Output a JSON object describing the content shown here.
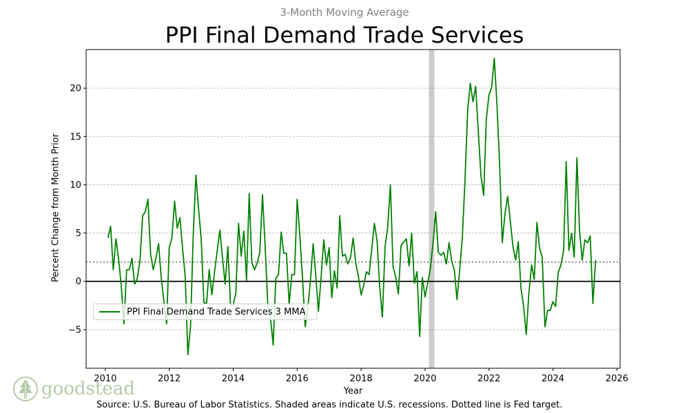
{
  "colors": {
    "series": "#008000",
    "recession": "#cccccc",
    "fed_target": "#808080",
    "zero_line": "#000000",
    "grid": "#b0b0b0"
  },
  "logo": {
    "text": "goodstead",
    "icon": "tree-icon"
  },
  "chart_data": {
    "type": "line",
    "subtitle": "3-Month Moving Average",
    "title": "PPI Final Demand Trade Services",
    "xlabel": "Year",
    "ylabel": "Percent Change from Month Prior",
    "source": "Source: U.S. Bureau of Labor Statistics. Shaded areas indicate U.S. recessions. Dotted line is Fed target.",
    "xlim": [
      2009.4,
      2026.1
    ],
    "ylim": [
      -9,
      24
    ],
    "xticks": [
      2010,
      2012,
      2014,
      2016,
      2018,
      2020,
      2022,
      2024,
      2026
    ],
    "yticks": [
      -5,
      0,
      5,
      10,
      15,
      20
    ],
    "grid": "horizontal dashed",
    "legend": {
      "position": "lower-left",
      "entries": [
        "PPI Final Demand Trade Services 3 MMA"
      ]
    },
    "reference_lines": [
      {
        "name": "fed-target",
        "y": 2,
        "style": "dotted"
      },
      {
        "name": "zero",
        "y": 0,
        "style": "solid"
      }
    ],
    "recessions": [
      [
        2020.12,
        2020.29
      ]
    ],
    "series": [
      {
        "name": "PPI Final Demand Trade Services 3 MMA",
        "start": 2010.083,
        "step": 0.08333,
        "values": [
          4.5,
          5.7,
          1.2,
          4.4,
          2.3,
          -0.5,
          -4.4,
          1.2,
          1.2,
          2.4,
          -0.3,
          0.3,
          2.1,
          6.8,
          7.2,
          8.5,
          2.8,
          1.2,
          2.4,
          3.9,
          0.4,
          -2.1,
          -4.4,
          3.5,
          4.5,
          8.3,
          5.5,
          6.6,
          3.4,
          0.5,
          -7.6,
          -4.6,
          4.7,
          11.0,
          7.5,
          4.4,
          -2.2,
          -2.3,
          1.2,
          -1.4,
          1.0,
          3.1,
          5.3,
          2.4,
          -0.3,
          3.6,
          -2.5,
          -2.4,
          -1.2,
          6.0,
          2.6,
          5.2,
          0.1,
          9.1,
          1.9,
          1.2,
          1.9,
          3.0,
          9.0,
          3.5,
          -2.5,
          -3.8,
          -6.6,
          0.3,
          0.7,
          5.1,
          2.9,
          2.9,
          -2.4,
          0.7,
          0.7,
          8.5,
          4.8,
          0.4,
          -4.7,
          -2.8,
          0.1,
          3.9,
          0.6,
          -3.1,
          0.5,
          4.3,
          1.7,
          3.5,
          -1.7,
          1.1,
          -0.7,
          6.8,
          2.6,
          2.8,
          1.8,
          2.4,
          4.5,
          1.9,
          0.5,
          -1.4,
          -0.4,
          1.0,
          0.7,
          3.3,
          6.0,
          4.2,
          -0.6,
          -3.7,
          3.6,
          5.6,
          10.0,
          1.5,
          0.5,
          -1.3,
          3.7,
          4.1,
          4.4,
          1.6,
          5.0,
          -0.2,
          1.0,
          -5.7,
          0.4,
          -1.6,
          -0.2,
          1.3,
          4.0,
          7.2,
          3.0,
          2.7,
          3.0,
          1.8,
          4.0,
          2.1,
          1.2,
          -1.9,
          1.2,
          4.5,
          10.5,
          17.8,
          20.5,
          18.6,
          20.2,
          15.5,
          10.9,
          8.9,
          16.8,
          19.3,
          20.1,
          23.1,
          18.3,
          12.0,
          4.0,
          7.0,
          8.8,
          6.3,
          3.6,
          2.2,
          4.1,
          -0.7,
          -2.6,
          -5.5,
          -1.1,
          1.7,
          0.2,
          6.1,
          3.4,
          2.5,
          -4.7,
          -3.0,
          -3.0,
          -2.1,
          -2.6,
          0.9,
          1.7,
          3.2,
          12.4,
          3.2,
          5.0,
          2.5,
          12.8,
          5.2,
          2.2,
          4.3,
          4.0,
          4.7,
          -2.3,
          2.2
        ]
      }
    ]
  }
}
